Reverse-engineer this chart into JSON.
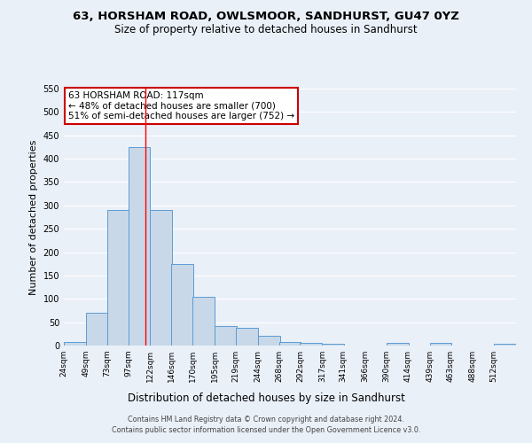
{
  "title": "63, HORSHAM ROAD, OWLSMOOR, SANDHURST, GU47 0YZ",
  "subtitle": "Size of property relative to detached houses in Sandhurst",
  "xlabel": "Distribution of detached houses by size in Sandhurst",
  "ylabel": "Number of detached properties",
  "bar_edges": [
    24,
    49,
    73,
    97,
    122,
    146,
    170,
    195,
    219,
    244,
    268,
    292,
    317,
    341,
    366,
    390,
    414,
    439,
    463,
    488,
    512
  ],
  "bar_heights": [
    8,
    70,
    290,
    425,
    290,
    175,
    105,
    42,
    37,
    20,
    8,
    5,
    4,
    0,
    0,
    5,
    0,
    5,
    0,
    0,
    4
  ],
  "bar_color": "#c8d8e8",
  "bar_edge_color": "#5b9bd5",
  "background_color": "#eaf0f8",
  "grid_color": "#ffffff",
  "red_line_x": 117,
  "annotation_text": "63 HORSHAM ROAD: 117sqm\n← 48% of detached houses are smaller (700)\n51% of semi-detached houses are larger (752) →",
  "annotation_box_color": "#ffffff",
  "annotation_box_edge_color": "#cc0000",
  "ylim": [
    0,
    550
  ],
  "yticks": [
    0,
    50,
    100,
    150,
    200,
    250,
    300,
    350,
    400,
    450,
    500,
    550
  ],
  "footer_text": "Contains HM Land Registry data © Crown copyright and database right 2024.\nContains public sector information licensed under the Open Government Licence v3.0.",
  "tick_labels": [
    "24sqm",
    "49sqm",
    "73sqm",
    "97sqm",
    "122sqm",
    "146sqm",
    "170sqm",
    "195sqm",
    "219sqm",
    "244sqm",
    "268sqm",
    "292sqm",
    "317sqm",
    "341sqm",
    "366sqm",
    "390sqm",
    "414sqm",
    "439sqm",
    "463sqm",
    "488sqm",
    "512sqm"
  ]
}
